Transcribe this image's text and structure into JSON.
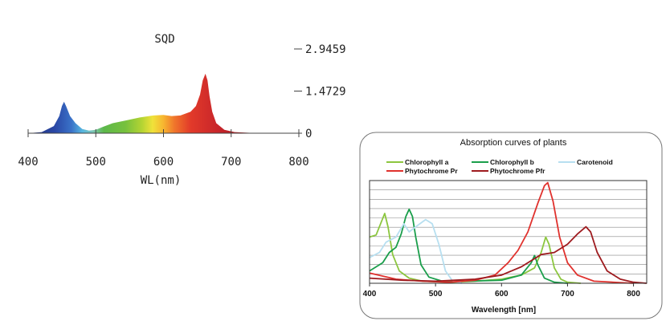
{
  "spectrum_chart": {
    "title": "SQD",
    "xlabel": "WL(nm)",
    "x_ticks": [
      400,
      500,
      600,
      700,
      800
    ],
    "y_tick_labels": [
      "2.9459",
      "1.4729",
      "0"
    ],
    "y_tick_values": [
      2.9459,
      1.4729,
      0
    ],
    "xlim": [
      400,
      800
    ],
    "ylim": [
      0,
      2.9459
    ],
    "peak_points": [
      [
        400,
        0.0
      ],
      [
        420,
        0.04
      ],
      [
        438,
        0.25
      ],
      [
        446,
        0.6
      ],
      [
        450,
        0.95
      ],
      [
        453,
        1.1
      ],
      [
        456,
        0.95
      ],
      [
        462,
        0.6
      ],
      [
        470,
        0.35
      ],
      [
        480,
        0.15
      ],
      [
        490,
        0.09
      ],
      [
        500,
        0.12
      ],
      [
        510,
        0.22
      ],
      [
        525,
        0.35
      ],
      [
        545,
        0.45
      ],
      [
        565,
        0.55
      ],
      [
        585,
        0.62
      ],
      [
        600,
        0.64
      ],
      [
        612,
        0.6
      ],
      [
        625,
        0.62
      ],
      [
        640,
        0.75
      ],
      [
        648,
        0.95
      ],
      [
        654,
        1.35
      ],
      [
        658,
        1.85
      ],
      [
        662,
        2.08
      ],
      [
        665,
        1.85
      ],
      [
        668,
        1.3
      ],
      [
        672,
        0.75
      ],
      [
        678,
        0.35
      ],
      [
        690,
        0.12
      ],
      [
        705,
        0.04
      ],
      [
        730,
        0.01
      ],
      [
        800,
        0.0
      ]
    ]
  },
  "chart_data": {
    "type": "line",
    "title": "Absorption curves of plants",
    "xlabel": "Wavelength [nm]",
    "ylabel": "",
    "xlim": [
      400,
      820
    ],
    "ylim": [
      0,
      1
    ],
    "x_ticks": [
      400,
      500,
      600,
      700,
      800
    ],
    "grid": true,
    "legend_position": "top",
    "series": [
      {
        "name": "Chlorophyll a",
        "color": "#8cc63f",
        "points": [
          [
            400,
            0.45
          ],
          [
            410,
            0.47
          ],
          [
            418,
            0.6
          ],
          [
            423,
            0.68
          ],
          [
            428,
            0.55
          ],
          [
            435,
            0.28
          ],
          [
            445,
            0.12
          ],
          [
            460,
            0.05
          ],
          [
            480,
            0.02
          ],
          [
            520,
            0.01
          ],
          [
            560,
            0.02
          ],
          [
            600,
            0.04
          ],
          [
            630,
            0.08
          ],
          [
            650,
            0.15
          ],
          [
            660,
            0.3
          ],
          [
            667,
            0.45
          ],
          [
            672,
            0.38
          ],
          [
            680,
            0.15
          ],
          [
            690,
            0.04
          ],
          [
            700,
            0.01
          ],
          [
            720,
            0.0
          ]
        ]
      },
      {
        "name": "Chlorophyll b",
        "color": "#1a9e4b",
        "points": [
          [
            400,
            0.12
          ],
          [
            420,
            0.2
          ],
          [
            430,
            0.3
          ],
          [
            440,
            0.35
          ],
          [
            448,
            0.48
          ],
          [
            455,
            0.65
          ],
          [
            460,
            0.72
          ],
          [
            465,
            0.65
          ],
          [
            470,
            0.45
          ],
          [
            478,
            0.18
          ],
          [
            490,
            0.06
          ],
          [
            510,
            0.02
          ],
          [
            550,
            0.02
          ],
          [
            600,
            0.03
          ],
          [
            630,
            0.08
          ],
          [
            645,
            0.2
          ],
          [
            650,
            0.27
          ],
          [
            655,
            0.18
          ],
          [
            665,
            0.05
          ],
          [
            680,
            0.01
          ],
          [
            700,
            0.0
          ]
        ]
      },
      {
        "name": "Carotenoid",
        "color": "#b7dff0",
        "points": [
          [
            400,
            0.25
          ],
          [
            415,
            0.3
          ],
          [
            425,
            0.4
          ],
          [
            440,
            0.45
          ],
          [
            452,
            0.58
          ],
          [
            460,
            0.5
          ],
          [
            470,
            0.55
          ],
          [
            485,
            0.62
          ],
          [
            495,
            0.58
          ],
          [
            505,
            0.38
          ],
          [
            515,
            0.12
          ],
          [
            525,
            0.03
          ],
          [
            540,
            0.0
          ]
        ]
      },
      {
        "name": "Phytochrome Pr",
        "color": "#e0312d",
        "points": [
          [
            400,
            0.1
          ],
          [
            440,
            0.04
          ],
          [
            480,
            0.02
          ],
          [
            520,
            0.01
          ],
          [
            560,
            0.03
          ],
          [
            590,
            0.08
          ],
          [
            610,
            0.2
          ],
          [
            625,
            0.32
          ],
          [
            640,
            0.5
          ],
          [
            655,
            0.78
          ],
          [
            665,
            0.95
          ],
          [
            670,
            0.98
          ],
          [
            678,
            0.8
          ],
          [
            688,
            0.45
          ],
          [
            700,
            0.2
          ],
          [
            715,
            0.08
          ],
          [
            740,
            0.02
          ],
          [
            800,
            0.0
          ]
        ]
      },
      {
        "name": "Phytochrome Pfr",
        "color": "#9e1b1f",
        "points": [
          [
            400,
            0.05
          ],
          [
            450,
            0.03
          ],
          [
            500,
            0.02
          ],
          [
            560,
            0.04
          ],
          [
            600,
            0.08
          ],
          [
            630,
            0.16
          ],
          [
            660,
            0.28
          ],
          [
            680,
            0.3
          ],
          [
            700,
            0.38
          ],
          [
            715,
            0.48
          ],
          [
            728,
            0.55
          ],
          [
            735,
            0.5
          ],
          [
            745,
            0.3
          ],
          [
            760,
            0.12
          ],
          [
            780,
            0.04
          ],
          [
            800,
            0.01
          ],
          [
            820,
            0.0
          ]
        ]
      }
    ]
  }
}
